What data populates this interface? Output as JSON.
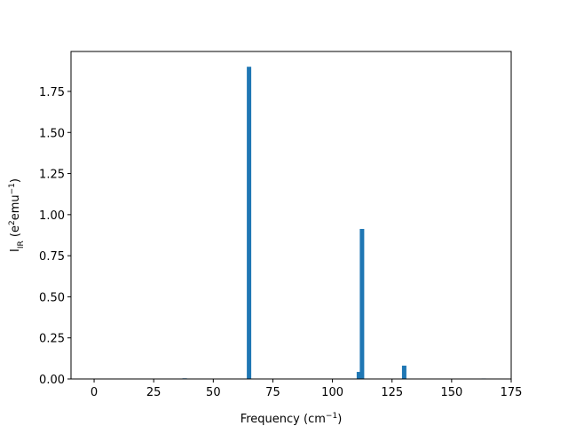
{
  "chart_data": {
    "type": "bar",
    "xlabel": [
      {
        "text": "Frequency (cm",
        "shift": "normal"
      },
      {
        "text": "−1",
        "shift": "sup"
      },
      {
        "text": ")",
        "shift": "normal"
      }
    ],
    "ylabel": [
      {
        "text": "I",
        "shift": "normal"
      },
      {
        "text": "IR",
        "shift": "sub"
      },
      {
        "text": " (e",
        "shift": "normal"
      },
      {
        "text": "2",
        "shift": "sup"
      },
      {
        "text": "emu",
        "shift": "normal"
      },
      {
        "text": "−1",
        "shift": "sup"
      },
      {
        "text": ")",
        "shift": "normal"
      }
    ],
    "x": [
      38.0,
      65.0,
      111.1,
      112.4,
      130.1,
      163.5
    ],
    "values": [
      0.004,
      1.9,
      0.043,
      0.913,
      0.081,
      0.003
    ],
    "color": "#1f77b4",
    "xlim": [
      -9.7,
      175
    ],
    "ylim": [
      0,
      1.993
    ],
    "xticks": [
      0,
      25,
      50,
      75,
      100,
      125,
      150,
      175
    ],
    "yticks": [
      {
        "value": 0,
        "label": "0.00"
      },
      {
        "value": 0.25,
        "label": "0.25"
      },
      {
        "value": 0.5,
        "label": "0.50"
      },
      {
        "value": 0.75,
        "label": "0.75"
      },
      {
        "value": 1.0,
        "label": "1.00"
      },
      {
        "value": 1.25,
        "label": "1.25"
      },
      {
        "value": 1.5,
        "label": "1.50"
      },
      {
        "value": 1.75,
        "label": "1.75"
      }
    ],
    "grid": false
  }
}
